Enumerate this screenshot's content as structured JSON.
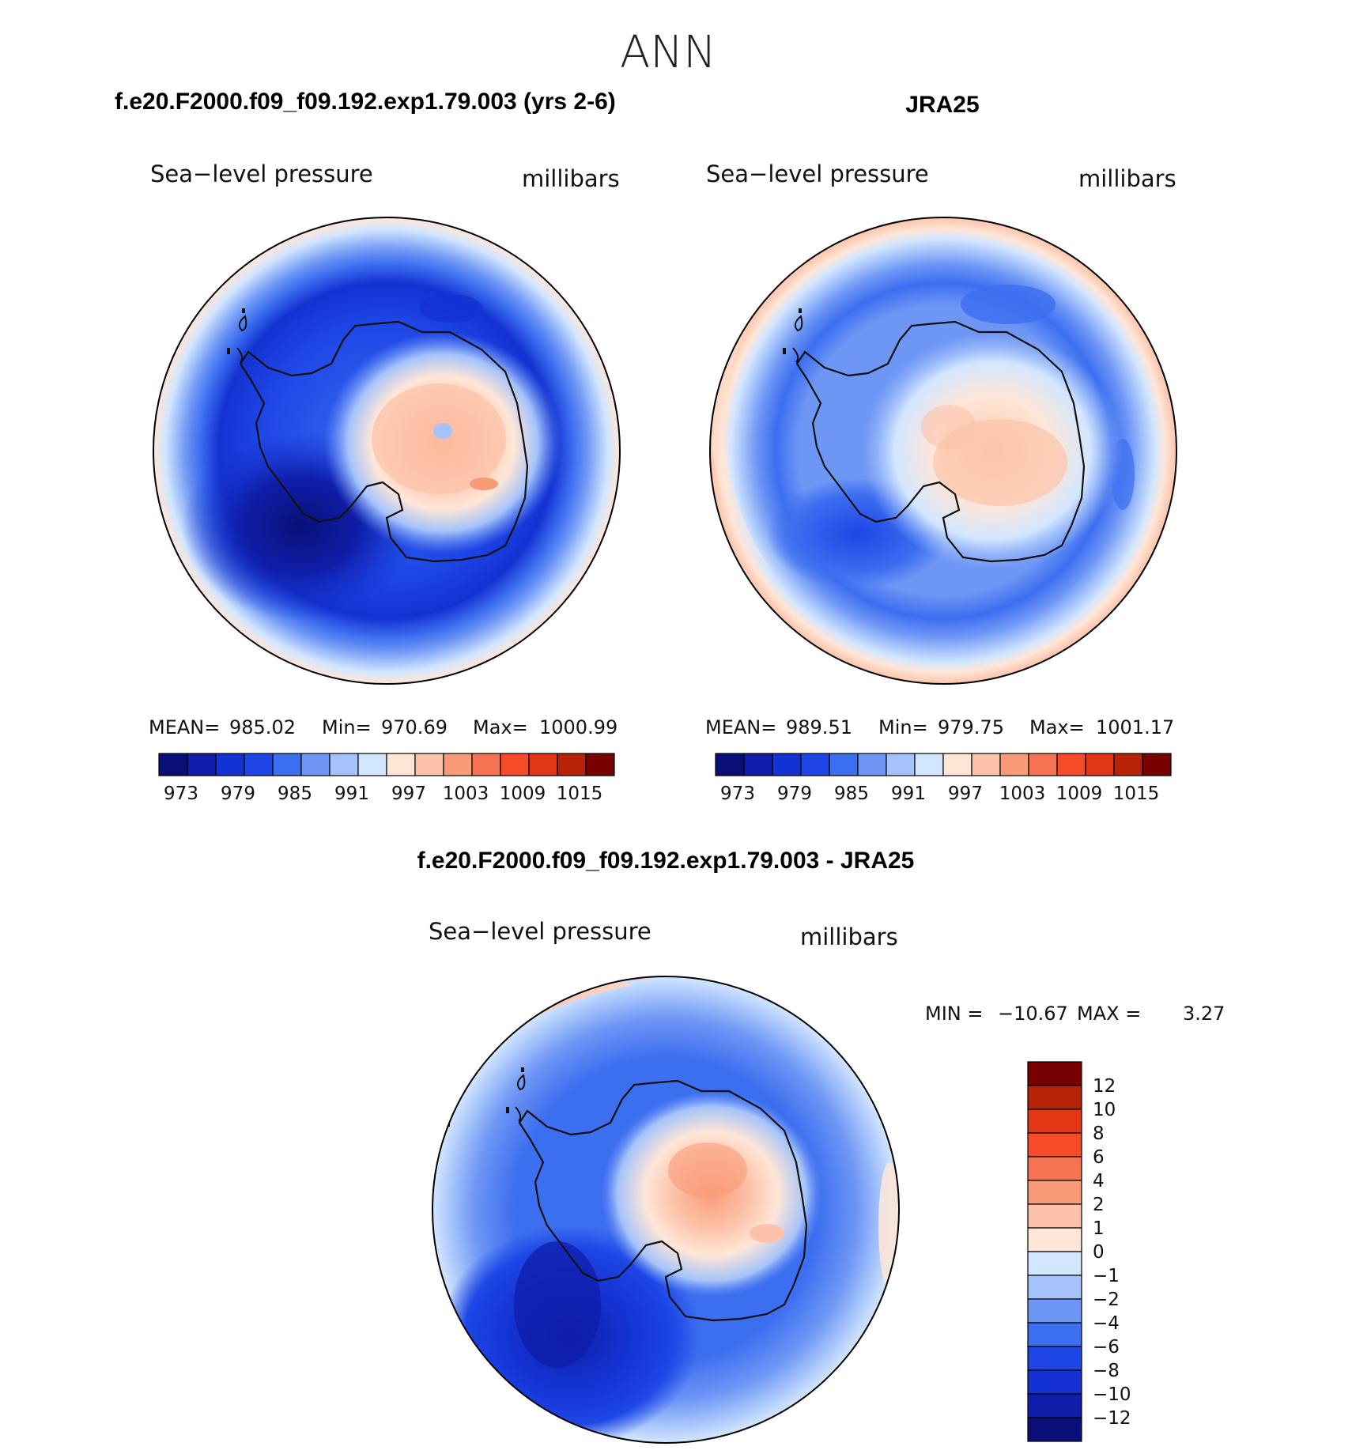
{
  "page_title": "ANN",
  "panels": [
    {
      "id": "model",
      "heading": "f.e20.F2000.f09_f09.192.exp1.79.003 (yrs 2-6)",
      "variable": "Sea−level pressure",
      "units": "millibars",
      "stats": {
        "mean_label": "MEAN=",
        "mean": "985.02",
        "min_label": "Min=",
        "min": "970.69",
        "max_label": "Max=",
        "max": "1000.99"
      }
    },
    {
      "id": "obs",
      "heading": "JRA25",
      "variable": "Sea−level pressure",
      "units": "millibars",
      "stats": {
        "mean_label": "MEAN=",
        "mean": "989.51",
        "min_label": "Min=",
        "min": "979.75",
        "max_label": "Max=",
        "max": "1001.17"
      }
    },
    {
      "id": "diff",
      "heading": "f.e20.F2000.f09_f09.192.exp1.79.003 - JRA25",
      "variable": "Sea−level pressure",
      "units": "millibars",
      "stats": {
        "min_label": "MIN =",
        "min": "−10.67",
        "max_label": "MAX =",
        "max": "3.27"
      }
    }
  ],
  "colorbar_slp": {
    "colors": [
      "#0a0f78",
      "#0f1eaa",
      "#1432d2",
      "#1e46e6",
      "#3c6ef0",
      "#6e96f5",
      "#a5c3fa",
      "#d2e6ff",
      "#ffe6d7",
      "#fcc3aa",
      "#fa9b78",
      "#f57350",
      "#f54b28",
      "#e13714",
      "#b42305",
      "#780000"
    ],
    "labels": [
      "973",
      "979",
      "985",
      "991",
      "997",
      "1003",
      "1009",
      "1015"
    ]
  },
  "colorbar_diff": {
    "colors": [
      "#0a0f78",
      "#0f1eaa",
      "#1432d2",
      "#1e46e6",
      "#3c6ef0",
      "#6e96f5",
      "#a5c3fa",
      "#d2e6ff",
      "#ffe6d7",
      "#fcc3aa",
      "#fa9b78",
      "#f57350",
      "#f54b28",
      "#e13714",
      "#b42305",
      "#780000"
    ],
    "labels": [
      "−12",
      "−10",
      "−8",
      "−6",
      "−4",
      "−2",
      "−1",
      "0",
      "1",
      "2",
      "4",
      "6",
      "8",
      "10",
      "12"
    ]
  }
}
